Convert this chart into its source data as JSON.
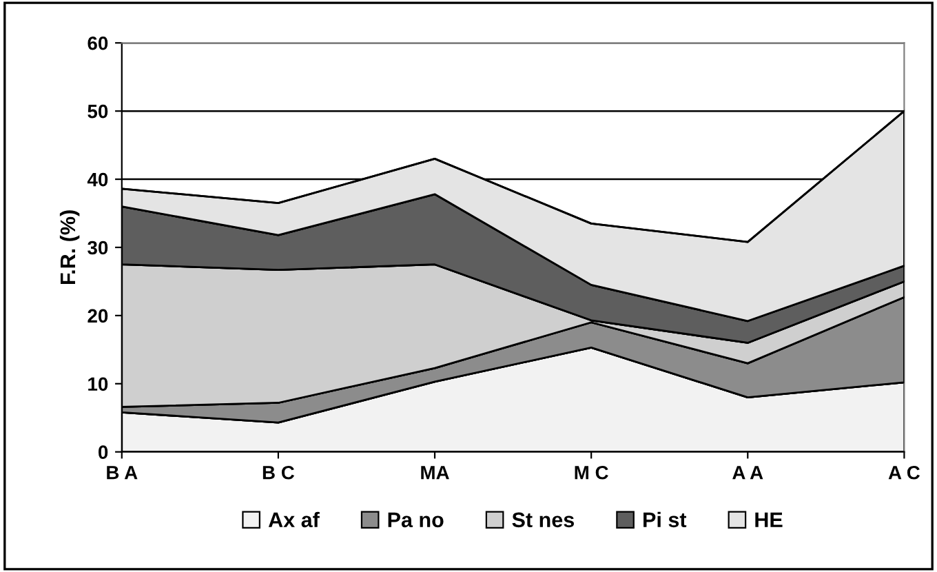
{
  "chart_data": {
    "type": "area",
    "stacked": true,
    "ylabel": "F.R. (%)",
    "categories": [
      "B A",
      "B C",
      "MA",
      "M C",
      "A A",
      "A C"
    ],
    "series": [
      {
        "name": "Ax af",
        "color": "#f2f2f2",
        "values": [
          5.8,
          4.3,
          10.3,
          15.3,
          8.0,
          10.2
        ]
      },
      {
        "name": "Pa no",
        "color": "#8c8c8c",
        "values": [
          0.8,
          2.9,
          2.0,
          3.7,
          5.0,
          12.5
        ]
      },
      {
        "name": "St nes",
        "color": "#cfcfcf",
        "values": [
          20.9,
          19.5,
          15.2,
          0.3,
          3.0,
          2.3
        ]
      },
      {
        "name": "Pi st",
        "color": "#5e5e5e",
        "values": [
          8.5,
          5.1,
          10.3,
          5.2,
          3.2,
          2.3
        ]
      },
      {
        "name": "HE",
        "color": "#e4e4e4",
        "values": [
          2.6,
          4.7,
          5.2,
          9.0,
          11.6,
          22.7
        ]
      }
    ],
    "ylim": [
      0,
      60
    ],
    "yticks": [
      0,
      10,
      20,
      30,
      40,
      50,
      60
    ],
    "grid": "y",
    "legend": "bottom"
  }
}
